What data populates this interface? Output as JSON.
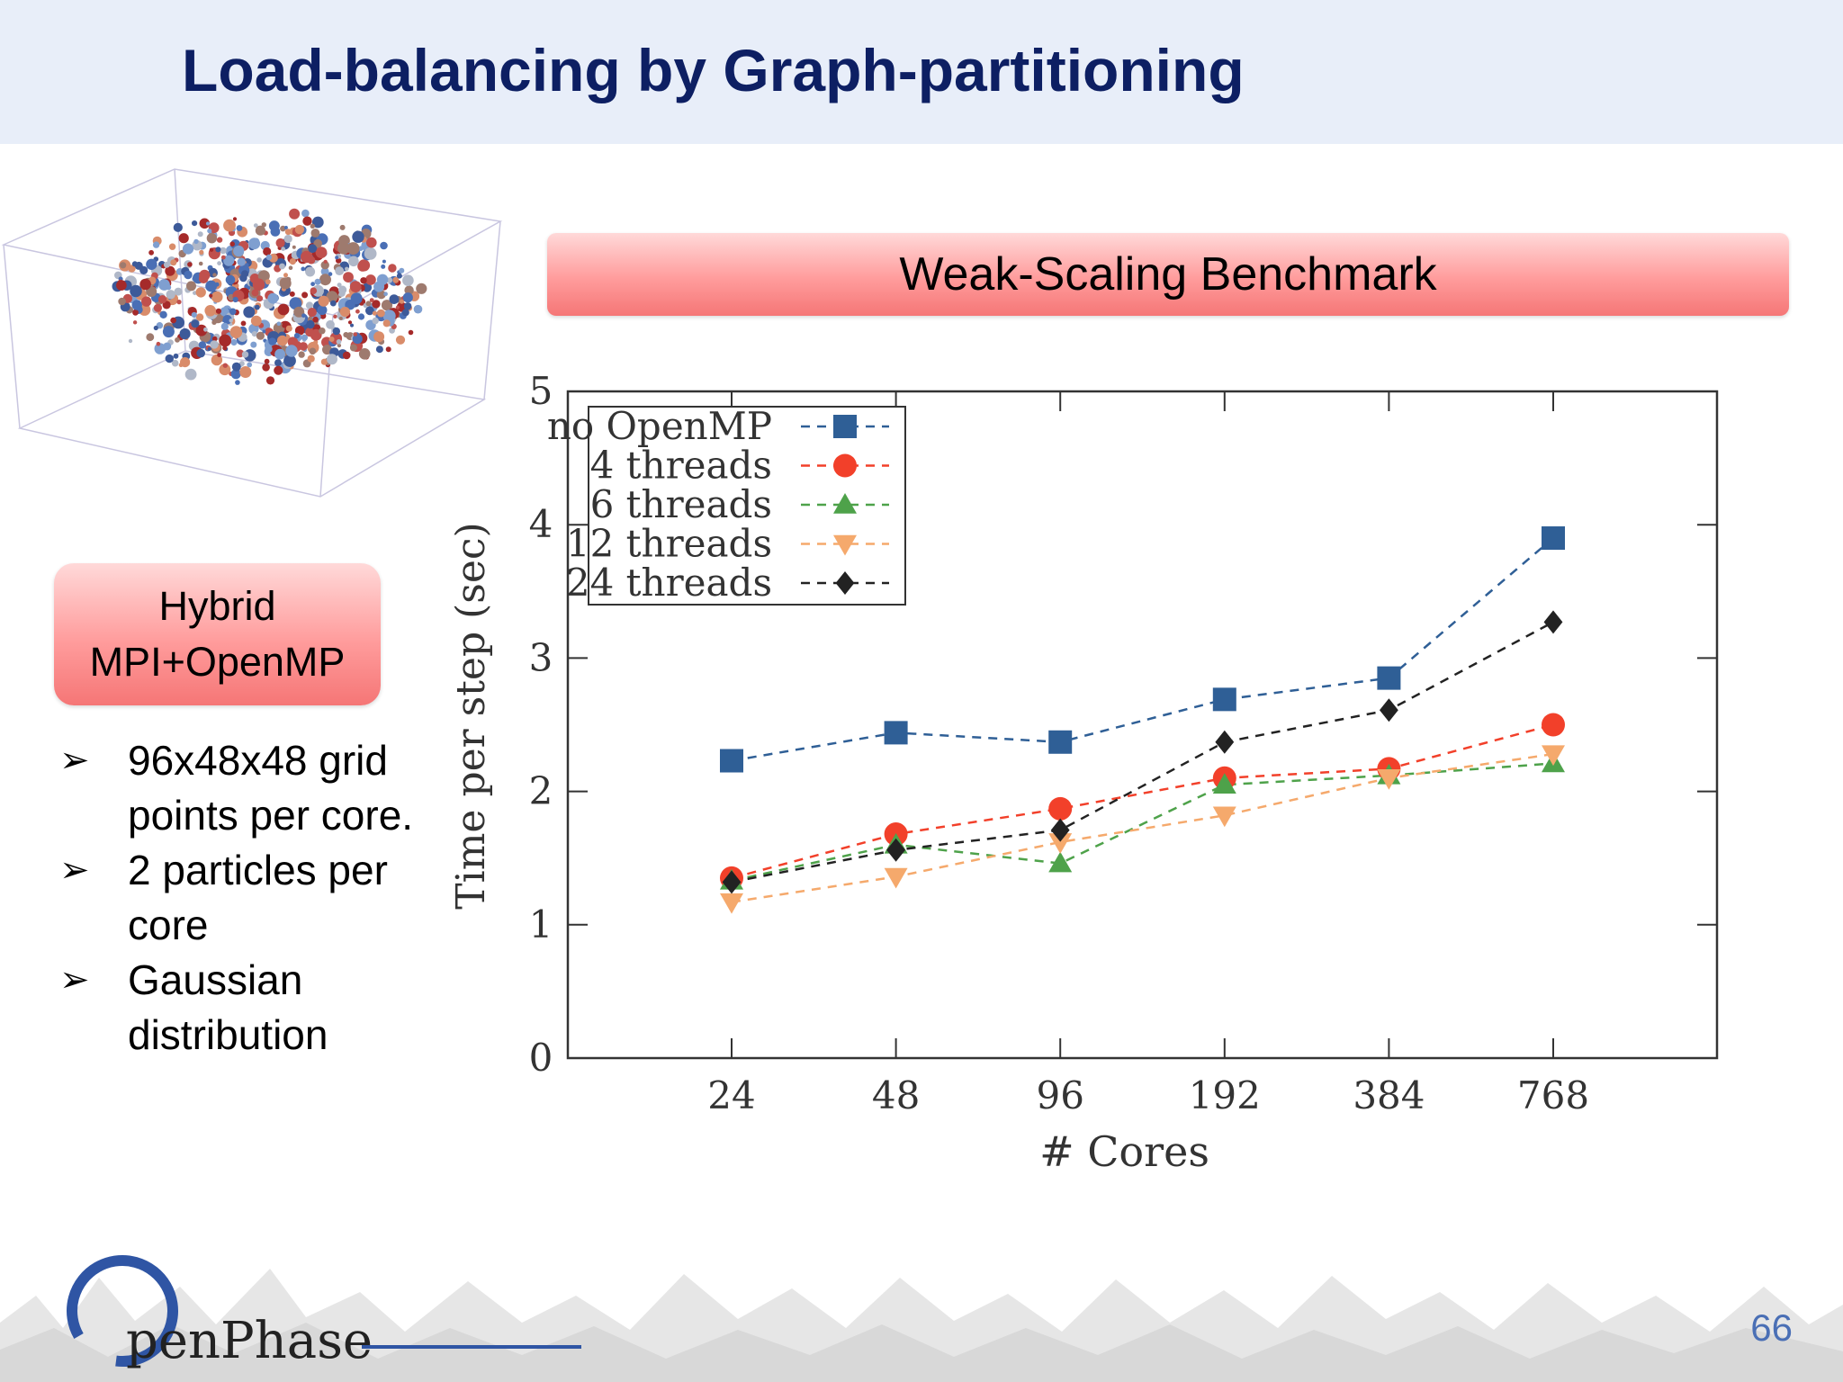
{
  "slide": {
    "title": "Load-balancing by Graph-partitioning",
    "banner": "Weak-Scaling Benchmark",
    "hybrid_line1": "Hybrid",
    "hybrid_line2": "MPI+OpenMP",
    "bullets": [
      "96x48x48 grid points per core.",
      "2 particles per core",
      "Gaussian distribution"
    ],
    "logo_text": "penPhase",
    "page_number": "66"
  },
  "colors": {
    "header_bg": "#e8eef9",
    "title": "#0d1f63",
    "no_openmp": "#2f5f96",
    "t4": "#f2402a",
    "t6": "#4ea24a",
    "t12": "#f5a96c",
    "t24": "#222222"
  },
  "chart_data": {
    "type": "line",
    "title": "",
    "xlabel": "# Cores",
    "ylabel": "Time per step (sec)",
    "categories": [
      "24",
      "48",
      "96",
      "192",
      "384",
      "768"
    ],
    "ylim": [
      0,
      5
    ],
    "yticks": [
      "0",
      "1",
      "2",
      "3",
      "4",
      "5"
    ],
    "legend_position": "top-left",
    "grid": false,
    "series": [
      {
        "name": "no OpenMP",
        "marker": "square",
        "color": "#2f5f96",
        "values": [
          2.23,
          2.44,
          2.37,
          2.69,
          2.85,
          3.9
        ]
      },
      {
        "name": "4 threads",
        "marker": "circle",
        "color": "#f2402a",
        "values": [
          1.35,
          1.68,
          1.87,
          2.1,
          2.17,
          2.5
        ]
      },
      {
        "name": "6 threads",
        "marker": "triangle-up",
        "color": "#4ea24a",
        "values": [
          1.33,
          1.6,
          1.46,
          2.05,
          2.12,
          2.21
        ]
      },
      {
        "name": "12 threads",
        "marker": "triangle-down",
        "color": "#f5a96c",
        "values": [
          1.17,
          1.36,
          1.62,
          1.82,
          2.1,
          2.28
        ]
      },
      {
        "name": "24 threads",
        "marker": "diamond",
        "color": "#222222",
        "values": [
          1.32,
          1.56,
          1.71,
          2.37,
          2.61,
          3.27
        ]
      }
    ]
  }
}
